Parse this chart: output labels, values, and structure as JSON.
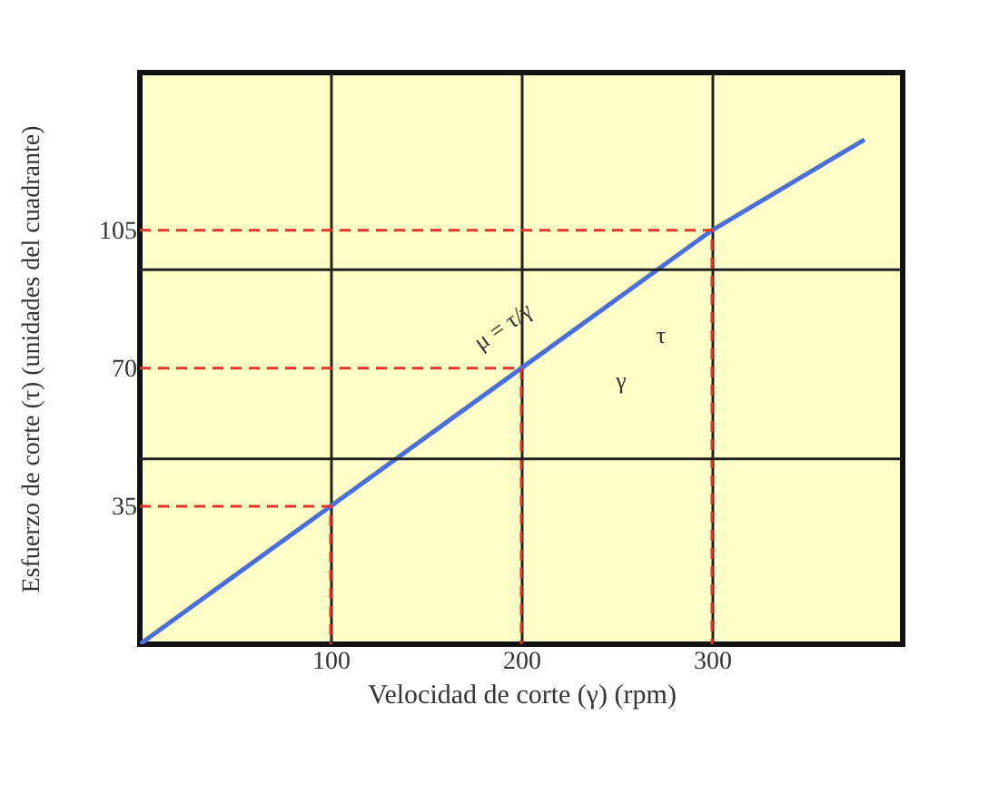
{
  "chart_data": {
    "type": "line",
    "xlabel": "Velocidad de corte (γ) (rpm)",
    "ylabel": "Esfuerzo de corte (τ) (unidades del cuadrante)",
    "series": [
      {
        "x": [
          0,
          100,
          200,
          300,
          380
        ],
        "values": [
          0,
          35,
          70,
          105,
          128
        ],
        "color": "#4a6fdc",
        "line_style": "solid"
      },
      {
        "x": [
          0,
          100,
          100
        ],
        "values": [
          35,
          35,
          0
        ],
        "color": "#e8302a",
        "line_style": "dashed"
      },
      {
        "x": [
          0,
          200,
          200
        ],
        "values": [
          70,
          70,
          0
        ],
        "color": "#e8302a",
        "line_style": "dashed"
      },
      {
        "x": [
          0,
          300,
          300
        ],
        "values": [
          105,
          105,
          0
        ],
        "color": "#e8302a",
        "line_style": "dashed"
      }
    ],
    "xlim": [
      0,
      400
    ],
    "ylim": [
      0,
      145
    ],
    "xticks": [
      100,
      200,
      300
    ],
    "yticks": [
      35,
      70,
      105
    ],
    "ref_lines": [
      {
        "axis": "y",
        "value": 47,
        "color": "#222222"
      },
      {
        "axis": "y",
        "value": 95,
        "color": "#222222"
      }
    ],
    "grid": "x",
    "marker": "none",
    "annotations": [
      "μ = τ/γ",
      "τ",
      "γ"
    ]
  }
}
